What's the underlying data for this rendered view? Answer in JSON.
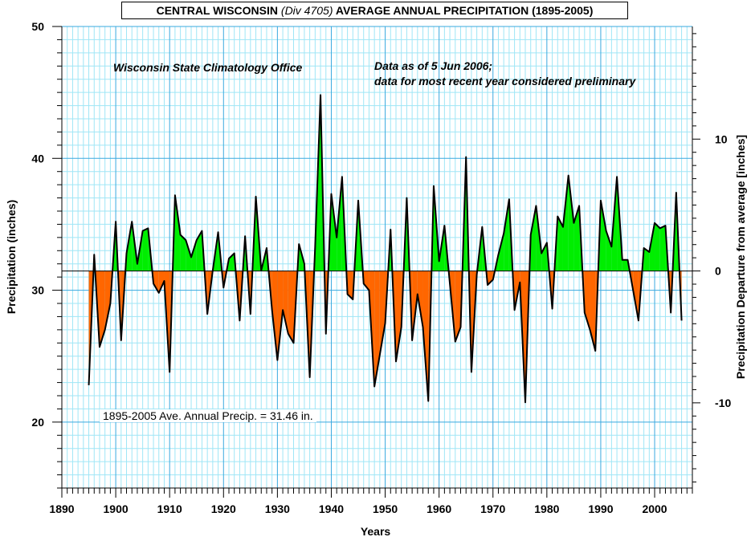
{
  "chart_data": {
    "type": "area",
    "title_parts": {
      "pre": "CENTRAL WISCONSIN ",
      "italic": "(Div 4705)",
      "post": " AVERAGE ANNUAL PRECIPITATION (1895-2005)"
    },
    "xlabel": "Years",
    "ylabel": "Precipitation (inches)",
    "ylabel_right": "Precipitation Departure from average [inches]",
    "annotations": {
      "source": "Wisconsin State Climatology Office",
      "data_note_1": "Data as of 5 Jun 2006;",
      "data_note_2": "data for most recent year considered preliminary",
      "average_note": "1895-2005 Ave. Annual Precip. = 31.46 in."
    },
    "baseline": 31.46,
    "xlim": [
      1890,
      2007
    ],
    "ylim": [
      15,
      50
    ],
    "right_ylim": [
      -16.46,
      18.54
    ],
    "x_ticks": [
      1890,
      1900,
      1910,
      1920,
      1930,
      1940,
      1950,
      1960,
      1970,
      1980,
      1990,
      2000
    ],
    "y_ticks": [
      20,
      30,
      40,
      50
    ],
    "right_y_ticks": [
      -10,
      0,
      10
    ],
    "grid": true,
    "colors": {
      "above": "#00ee00",
      "below": "#ff6600",
      "line": "#000000",
      "grid_major": "#3aa9df",
      "grid_minor": "#9fe6f6"
    },
    "x": [
      1895,
      1896,
      1897,
      1898,
      1899,
      1900,
      1901,
      1902,
      1903,
      1904,
      1905,
      1906,
      1907,
      1908,
      1909,
      1910,
      1911,
      1912,
      1913,
      1914,
      1915,
      1916,
      1917,
      1918,
      1919,
      1920,
      1921,
      1922,
      1923,
      1924,
      1925,
      1926,
      1927,
      1928,
      1929,
      1930,
      1931,
      1932,
      1933,
      1934,
      1935,
      1936,
      1937,
      1938,
      1939,
      1940,
      1941,
      1942,
      1943,
      1944,
      1945,
      1946,
      1947,
      1948,
      1949,
      1950,
      1951,
      1952,
      1953,
      1954,
      1955,
      1956,
      1957,
      1958,
      1959,
      1960,
      1961,
      1962,
      1963,
      1964,
      1965,
      1966,
      1967,
      1968,
      1969,
      1970,
      1971,
      1972,
      1973,
      1974,
      1975,
      1976,
      1977,
      1978,
      1979,
      1980,
      1981,
      1982,
      1983,
      1984,
      1985,
      1986,
      1987,
      1988,
      1989,
      1990,
      1991,
      1992,
      1993,
      1994,
      1995,
      1996,
      1997,
      1998,
      1999,
      2000,
      2001,
      2002,
      2003,
      2004,
      2005
    ],
    "values": [
      22.8,
      32.7,
      25.7,
      27.0,
      29.0,
      35.2,
      26.2,
      32.8,
      35.2,
      32.0,
      34.5,
      34.7,
      30.5,
      29.8,
      30.7,
      23.8,
      37.2,
      34.2,
      33.8,
      32.5,
      33.8,
      34.5,
      28.2,
      31.5,
      34.4,
      30.2,
      32.4,
      32.8,
      27.7,
      34.1,
      28.2,
      37.1,
      31.5,
      33.2,
      28.5,
      24.7,
      28.5,
      26.7,
      26.0,
      33.5,
      32.0,
      23.4,
      33.3,
      44.8,
      26.7,
      37.3,
      34.0,
      38.6,
      29.7,
      29.3,
      36.8,
      30.5,
      30.0,
      22.7,
      25.1,
      27.5,
      34.6,
      24.6,
      27.2,
      37.0,
      26.2,
      29.7,
      27.2,
      21.6,
      37.9,
      32.2,
      34.9,
      30.5,
      26.1,
      27.2,
      40.1,
      23.8,
      31.2,
      34.8,
      30.4,
      30.8,
      32.7,
      34.3,
      36.9,
      28.5,
      30.6,
      21.5,
      34.2,
      36.4,
      32.8,
      33.6,
      28.6,
      35.6,
      34.8,
      38.7,
      35.1,
      36.4,
      28.3,
      27.0,
      25.4,
      36.8,
      34.5,
      33.3,
      38.6,
      32.3,
      32.3,
      30.0,
      27.7,
      33.2,
      32.9,
      35.1,
      34.7,
      34.9,
      28.3,
      37.4,
      27.7
    ]
  }
}
